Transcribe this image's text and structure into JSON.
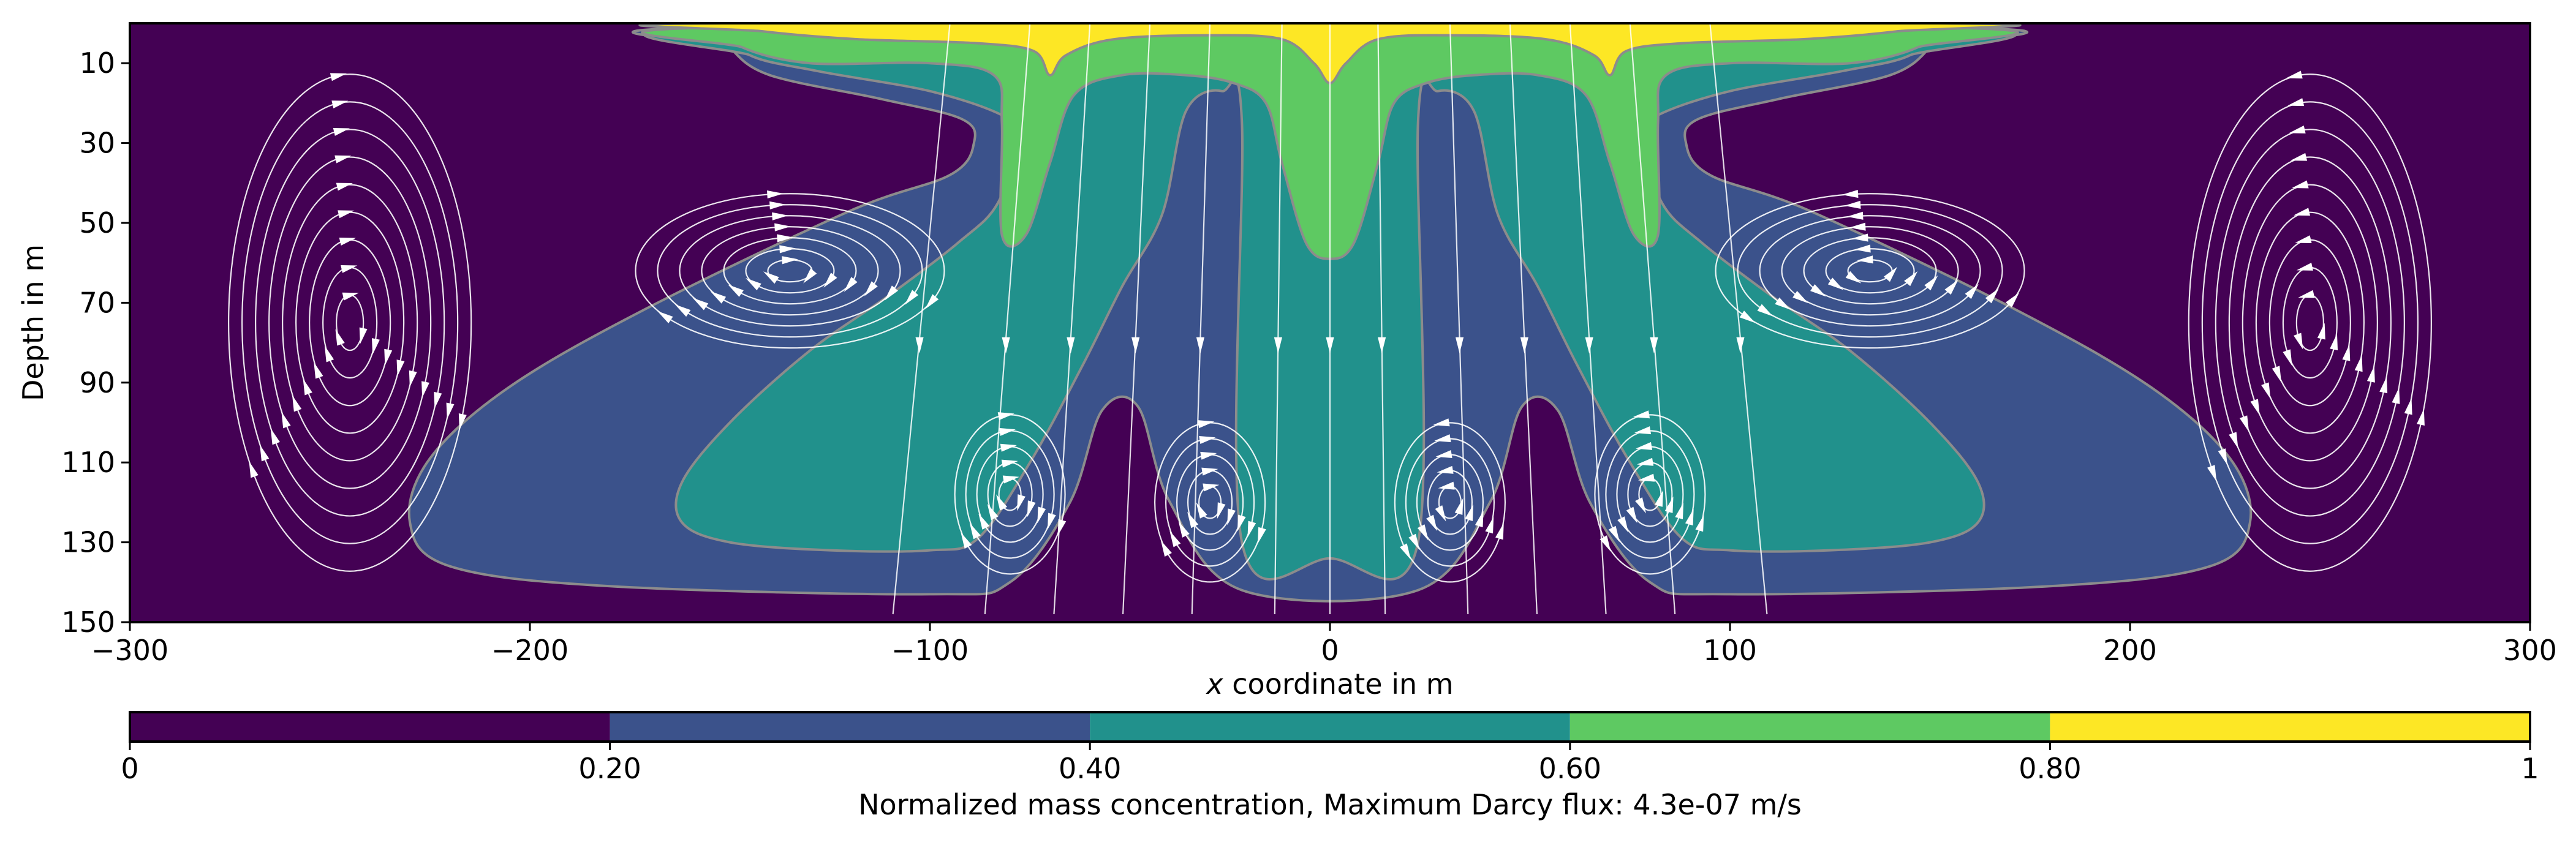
{
  "chart_data": {
    "type": "heatmap",
    "subtype": "filled-contour-with-streamlines",
    "title": "",
    "xlabel": {
      "italic": "x",
      "rest": " coordinate in m"
    },
    "ylabel": "Depth in m",
    "xlim": [
      -300,
      300
    ],
    "ylim": [
      150,
      0
    ],
    "y_inverted": true,
    "xticks": [
      -300,
      -200,
      -100,
      0,
      100,
      200,
      300
    ],
    "xtick_labels": [
      "−300",
      "−200",
      "−100",
      "0",
      "100",
      "200",
      "300"
    ],
    "yticks": [
      10,
      30,
      50,
      70,
      90,
      110,
      130,
      150
    ],
    "ytick_labels": [
      "10",
      "30",
      "50",
      "70",
      "90",
      "110",
      "130",
      "150"
    ],
    "colorbar": {
      "label": "Normalized mass concentration, Maximum Darcy flux: 4.3e-07 m/s",
      "levels": [
        0,
        0.2,
        0.4,
        0.6,
        0.8,
        1.0
      ],
      "tick_labels": [
        "0",
        "0.20",
        "0.40",
        "0.60",
        "0.80",
        "1"
      ],
      "colors": [
        "#440154",
        "#3b528b",
        "#21918c",
        "#5ec962",
        "#fde725"
      ]
    },
    "contour_edge_color": "#8c8c8c",
    "streamline_color": "#ffffff",
    "regions": [
      {
        "level": "0.2-0.4",
        "boundary": [
          [
            -152,
            1
          ],
          [
            152,
            1
          ],
          [
            150,
            6
          ],
          [
            140,
            13
          ],
          [
            112,
            19
          ],
          [
            92,
            24
          ],
          [
            89,
            30
          ],
          [
            95,
            38
          ],
          [
            120,
            47
          ],
          [
            170,
            71
          ],
          [
            205,
            91
          ],
          [
            225,
            109
          ],
          [
            230,
            125
          ],
          [
            220,
            136
          ],
          [
            180,
            141
          ],
          [
            100,
            143
          ],
          [
            80,
            140
          ],
          [
            65,
            120
          ],
          [
            57,
            97
          ],
          [
            48,
            96
          ],
          [
            40,
            120
          ],
          [
            22,
            142
          ],
          [
            -22,
            142
          ],
          [
            -40,
            120
          ],
          [
            -48,
            96
          ],
          [
            -57,
            97
          ],
          [
            -65,
            120
          ],
          [
            -80,
            140
          ],
          [
            -100,
            143
          ],
          [
            -180,
            141
          ],
          [
            -220,
            136
          ],
          [
            -230,
            125
          ],
          [
            -225,
            109
          ],
          [
            -205,
            91
          ],
          [
            -170,
            71
          ],
          [
            -120,
            47
          ],
          [
            -95,
            38
          ],
          [
            -89,
            30
          ],
          [
            -92,
            24
          ],
          [
            -112,
            19
          ],
          [
            -140,
            13
          ],
          [
            -150,
            6
          ]
        ]
      },
      {
        "level": "0.4-0.6",
        "boundary": [
          [
            -150,
            1
          ],
          [
            150,
            1
          ],
          [
            145,
            8
          ],
          [
            128,
            12
          ],
          [
            100,
            17
          ],
          [
            82,
            23
          ],
          [
            78,
            28
          ],
          [
            83,
            45
          ],
          [
            93,
            55
          ],
          [
            110,
            68
          ],
          [
            130,
            82
          ],
          [
            150,
            100
          ],
          [
            162,
            115
          ],
          [
            162,
            125
          ],
          [
            150,
            130
          ],
          [
            125,
            132
          ],
          [
            100,
            132
          ],
          [
            88,
            129
          ],
          [
            75,
            110
          ],
          [
            62,
            86
          ],
          [
            52,
            66
          ],
          [
            42,
            48
          ],
          [
            36,
            22
          ],
          [
            27,
            17
          ],
          [
            22,
            25
          ],
          [
            22,
            130
          ],
          [
            0,
            134
          ],
          [
            -22,
            130
          ],
          [
            -22,
            25
          ],
          [
            -27,
            17
          ],
          [
            -36,
            22
          ],
          [
            -42,
            48
          ],
          [
            -52,
            66
          ],
          [
            -62,
            86
          ],
          [
            -75,
            110
          ],
          [
            -88,
            129
          ],
          [
            -100,
            132
          ],
          [
            -125,
            132
          ],
          [
            -150,
            130
          ],
          [
            -162,
            125
          ],
          [
            -162,
            115
          ],
          [
            -150,
            100
          ],
          [
            -130,
            82
          ],
          [
            -110,
            68
          ],
          [
            -93,
            55
          ],
          [
            -83,
            45
          ],
          [
            -78,
            28
          ],
          [
            -82,
            23
          ],
          [
            -100,
            17
          ],
          [
            -128,
            12
          ],
          [
            -145,
            8
          ]
        ]
      },
      {
        "level": "0.6-0.8",
        "boundary": [
          [
            -150,
            1
          ],
          [
            150,
            1
          ],
          [
            147,
            6
          ],
          [
            130,
            10
          ],
          [
            100,
            10
          ],
          [
            84,
            13
          ],
          [
            82,
            25
          ],
          [
            82,
            53
          ],
          [
            76,
            53
          ],
          [
            70,
            35
          ],
          [
            64,
            18
          ],
          [
            52,
            13
          ],
          [
            36,
            13
          ],
          [
            24,
            15
          ],
          [
            16,
            20
          ],
          [
            12,
            35
          ],
          [
            6,
            55
          ],
          [
            0,
            59
          ],
          [
            -6,
            55
          ],
          [
            -12,
            35
          ],
          [
            -16,
            20
          ],
          [
            -24,
            15
          ],
          [
            -36,
            13
          ],
          [
            -52,
            13
          ],
          [
            -64,
            18
          ],
          [
            -70,
            35
          ],
          [
            -76,
            53
          ],
          [
            -82,
            53
          ],
          [
            -82,
            25
          ],
          [
            -84,
            13
          ],
          [
            -100,
            10
          ],
          [
            -130,
            10
          ],
          [
            -147,
            6
          ]
        ]
      },
      {
        "level": "0.8-1.0",
        "boundary": [
          [
            -152,
            0
          ],
          [
            152,
            0
          ],
          [
            142,
            2
          ],
          [
            118,
            4
          ],
          [
            88,
            5
          ],
          [
            74,
            7
          ],
          [
            70,
            13
          ],
          [
            66,
            8
          ],
          [
            54,
            4
          ],
          [
            30,
            3
          ],
          [
            12,
            4
          ],
          [
            4,
            10
          ],
          [
            0,
            15
          ],
          [
            -4,
            10
          ],
          [
            -12,
            4
          ],
          [
            -30,
            3
          ],
          [
            -54,
            4
          ],
          [
            -66,
            8
          ],
          [
            -70,
            13
          ],
          [
            -74,
            7
          ],
          [
            -88,
            5
          ],
          [
            -118,
            4
          ],
          [
            -142,
            2
          ]
        ]
      }
    ],
    "vortex_centers": [
      [
        -135,
        62
      ],
      [
        135,
        62
      ],
      [
        -80,
        118
      ],
      [
        80,
        118
      ],
      [
        -30,
        120
      ],
      [
        30,
        120
      ]
    ]
  }
}
